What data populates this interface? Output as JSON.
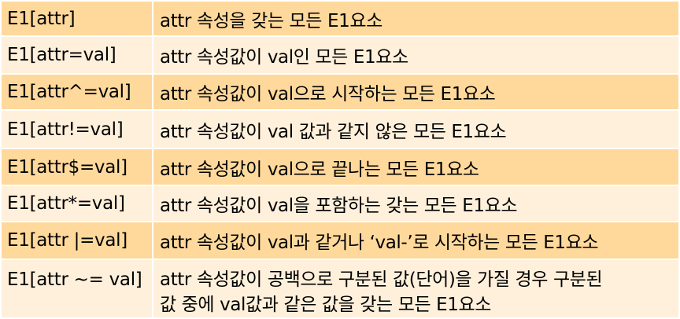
{
  "rows": [
    {
      "selector": "E1[attr]",
      "description": "attr 속성을 갖는 모든 E1요소"
    },
    {
      "selector": "E1[attr=val]",
      "description": "attr 속성값이 val인 모든 E1요소"
    },
    {
      "selector": "E1[attr^=val]",
      "description": "attr 속성값이 val으로 시작하는 모든 E1요소"
    },
    {
      "selector": "E1[attr!=val]",
      "description": "attr 속성값이 val 값과 같지 않은 모든 E1요소"
    },
    {
      "selector": "E1[attr$=val]",
      "description": "attr 속성값이 val으로 끝나는 모든 E1요소"
    },
    {
      "selector": "E1[attr*=val]",
      "description": "attr 속성값이 val을 포함하는 갖는 모든 E1요소"
    },
    {
      "selector": "E1[attr |=val]",
      "description": "attr 속성값이 val과 같거나 ‘val-’로 시작하는 모든 E1요소"
    },
    {
      "selector": "E1[attr ~= val]",
      "description_line1": "attr 속성값이 공백으로 구분된 값(단어)을 가질 경우 구분된",
      "description_line2": "값 중에 val값과 같은 값을 갖는 모든 E1요소"
    }
  ]
}
